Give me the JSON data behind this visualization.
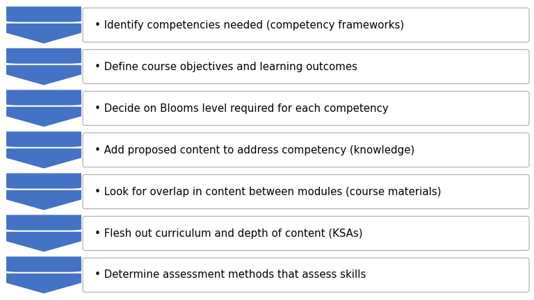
{
  "steps": [
    "Identify competencies needed (competency frameworks)",
    "Define course objectives and learning outcomes",
    "Decide on Blooms level required for each competency",
    "Add proposed content to address competency (knowledge)",
    "Look for overlap in content between modules (course materials)",
    "Flesh out curriculum and depth of content (KSAs)",
    "Determine assessment methods that assess skills"
  ],
  "arrow_color": "#4472C4",
  "box_fill": "#FFFFFF",
  "box_edge": "#AAAAAA",
  "text_color": "#000000",
  "bg_color": "#FFFFFF",
  "bullet": "•",
  "font_size": 10.8,
  "fig_width": 7.68,
  "fig_height": 4.32,
  "dpi": 100
}
